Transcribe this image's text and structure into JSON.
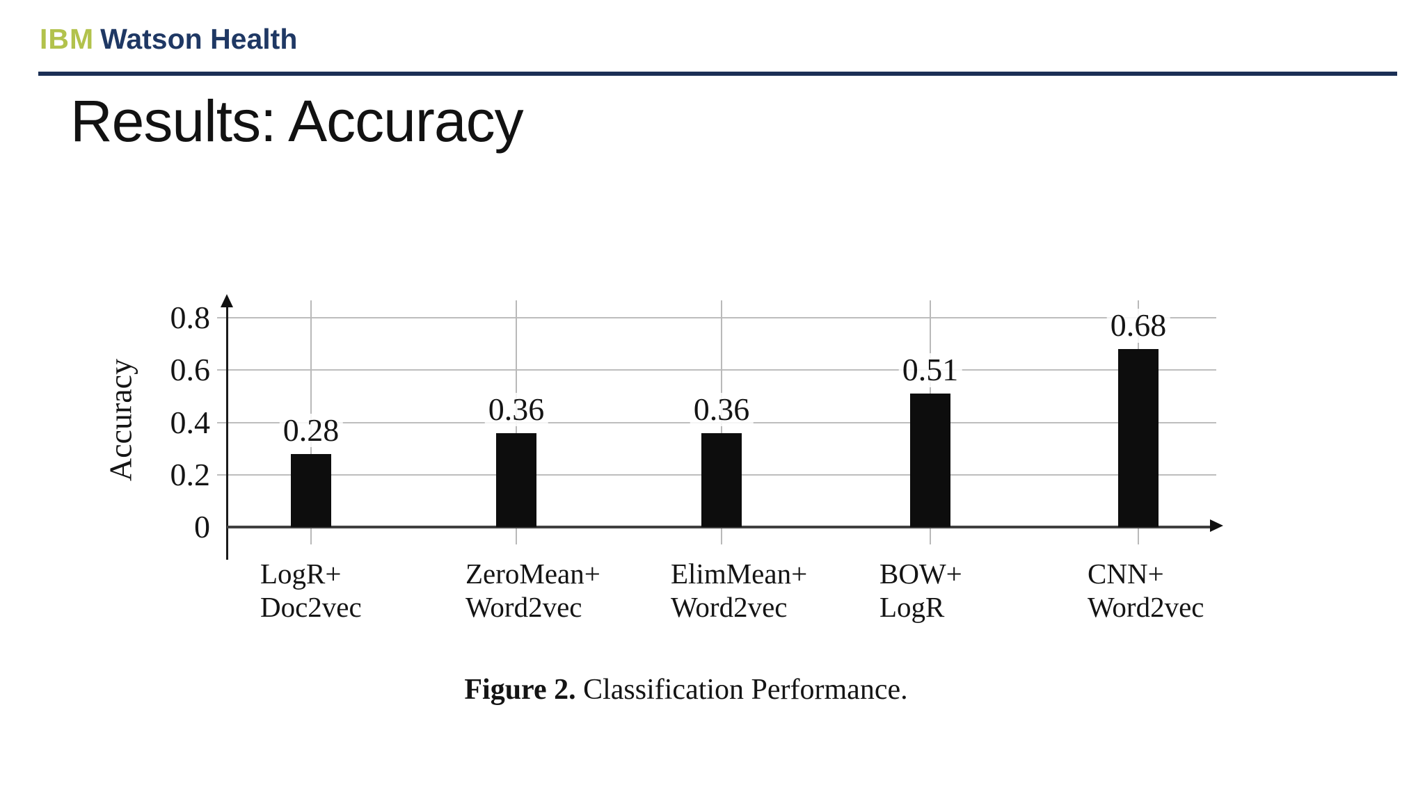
{
  "header": {
    "logo_ibm": "IBM",
    "logo_watson": "Watson Health"
  },
  "title": "Results: Accuracy",
  "chart_data": {
    "type": "bar",
    "title": "Figure 2. Classification Performance.",
    "ylabel": "Accuracy",
    "xlabel": "",
    "categories": [
      [
        "LogR+",
        "Doc2vec"
      ],
      [
        "ZeroMean+",
        "Word2vec"
      ],
      [
        "ElimMean+",
        "Word2vec"
      ],
      [
        "BOW+",
        "LogR"
      ],
      [
        "CNN+",
        "Word2vec"
      ]
    ],
    "values": [
      0.28,
      0.36,
      0.36,
      0.51,
      0.68
    ],
    "value_labels": [
      "0.28",
      "0.36",
      "0.36",
      "0.51",
      "0.68"
    ],
    "y_ticks": [
      0,
      0.2,
      0.4,
      0.6,
      0.8
    ],
    "y_tick_labels": [
      "0",
      "0.2",
      "0.4",
      "0.6",
      "0.8"
    ],
    "ylim": [
      0,
      0.88
    ],
    "grid": true,
    "legend_position": "none",
    "bar_color": "#0d0d0d"
  },
  "caption": {
    "label": "Figure 2.",
    "text": " Classification Performance."
  },
  "colors": {
    "ibm_green": "#b2c24c",
    "watson_navy": "#1f3864",
    "rule_navy": "#1b2f55",
    "grid_gray": "#bdbdbd",
    "bar_black": "#0d0d0d"
  }
}
